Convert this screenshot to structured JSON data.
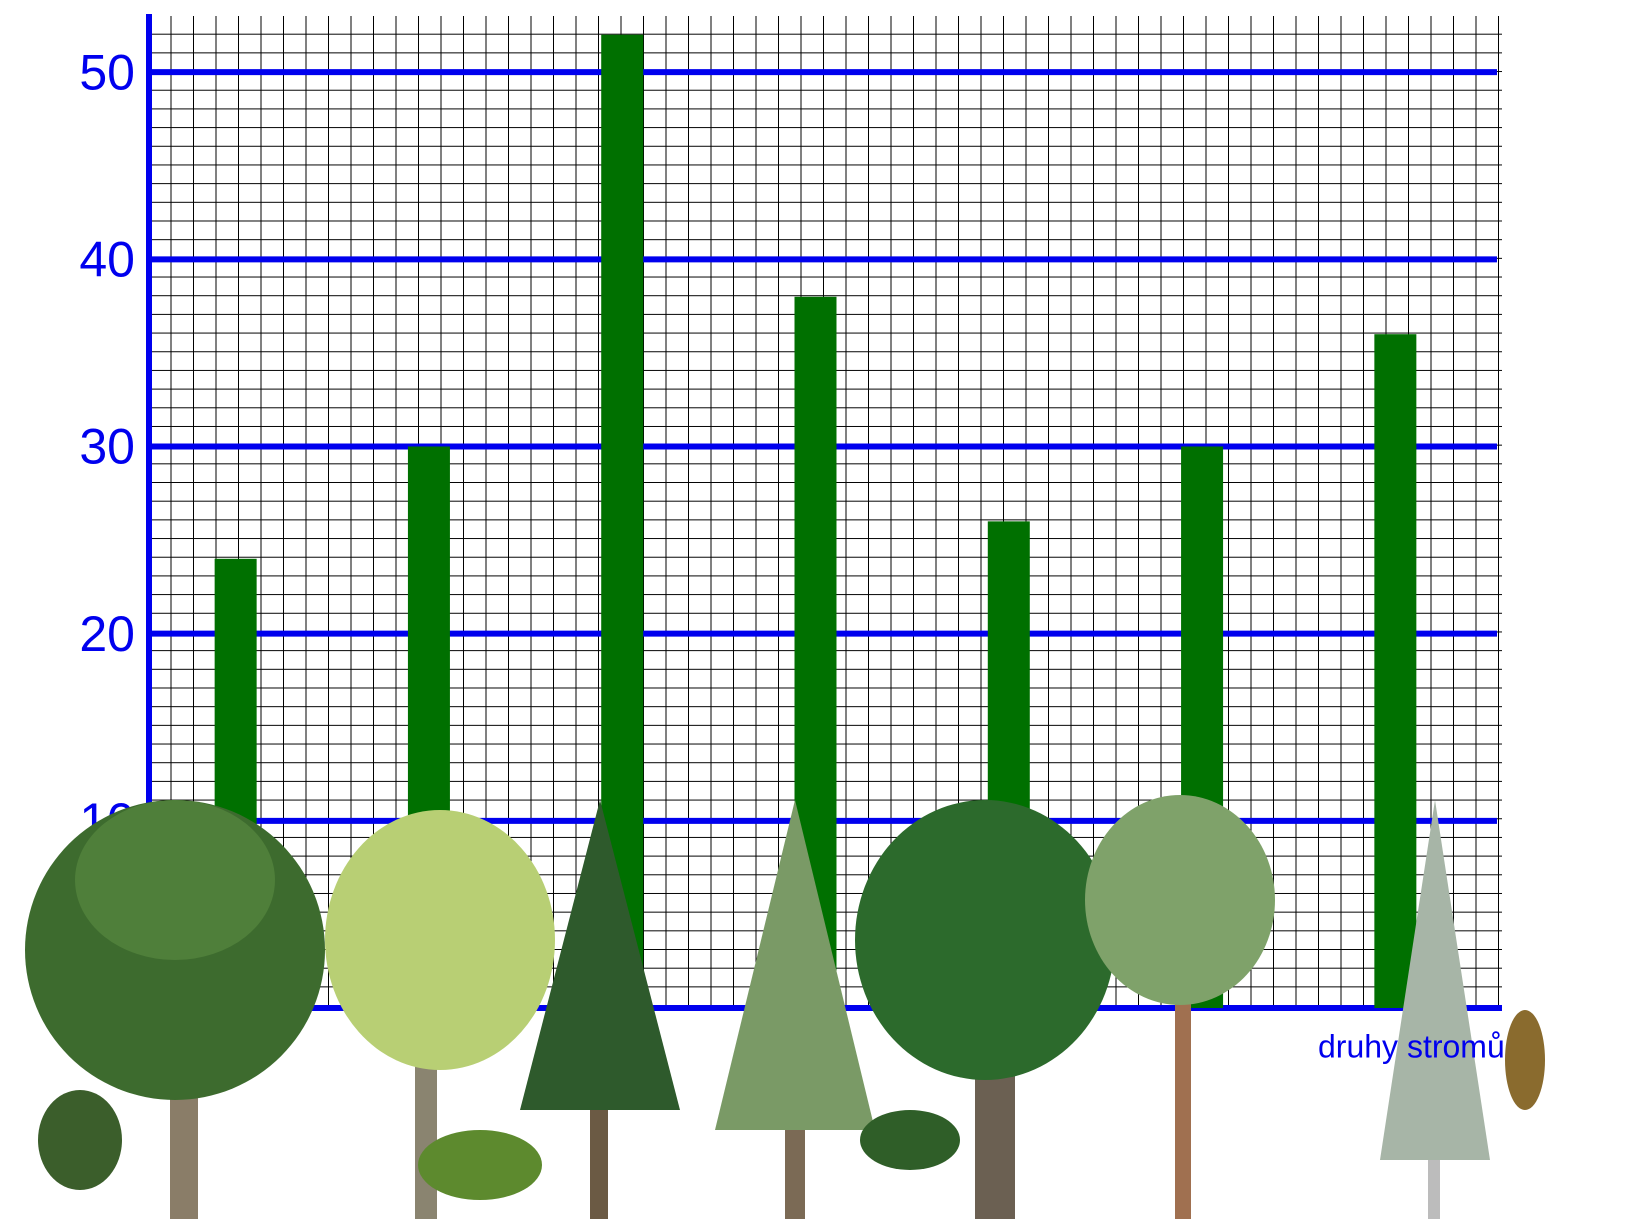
{
  "chart_data": {
    "type": "bar",
    "x_label": "druhy stromů",
    "categories": [
      null,
      null,
      null,
      null,
      null,
      null,
      null
    ],
    "values": [
      24,
      30,
      52,
      38,
      26,
      30,
      36
    ],
    "color": "#007000",
    "ylim": [
      0,
      53
    ],
    "yticks": [
      10,
      20,
      30,
      40,
      50
    ],
    "grid": true
  }
}
